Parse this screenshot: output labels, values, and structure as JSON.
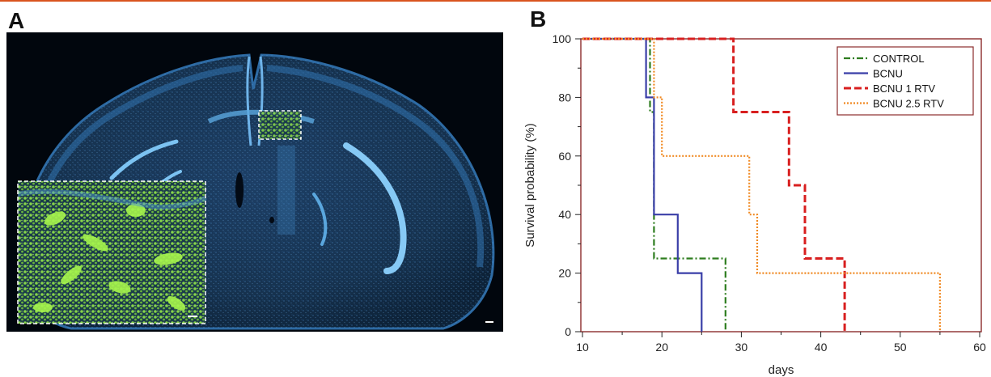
{
  "panels": {
    "a_label": "A",
    "b_label": "B"
  },
  "figure_colors": {
    "rule": "#d9541e",
    "frame": "#8b2c2c",
    "tissue_blue": "#3e8fd0",
    "tumor_green": "#9af04a"
  },
  "chart_data": {
    "type": "line",
    "step": true,
    "xlabel": "days",
    "ylabel": "Survival probability (%)",
    "xlim": [
      10,
      60
    ],
    "ylim": [
      0,
      100
    ],
    "xticks": [
      10,
      20,
      30,
      40,
      50,
      60
    ],
    "yticks": [
      0,
      20,
      40,
      60,
      80,
      100
    ],
    "legend_position": "top-right",
    "series": [
      {
        "name": "CONTROL",
        "color": "#2e7d1f",
        "dash": "dashdot",
        "points": [
          [
            10,
            100
          ],
          [
            18.5,
            100
          ],
          [
            18.5,
            75
          ],
          [
            19,
            75
          ],
          [
            19,
            25
          ],
          [
            28,
            25
          ],
          [
            28,
            0
          ]
        ]
      },
      {
        "name": "BCNU",
        "color": "#3a3fa8",
        "dash": "solid",
        "points": [
          [
            10,
            100
          ],
          [
            18,
            100
          ],
          [
            18,
            80
          ],
          [
            19,
            80
          ],
          [
            19,
            40
          ],
          [
            22,
            40
          ],
          [
            22,
            20
          ],
          [
            25,
            20
          ],
          [
            25,
            0
          ]
        ]
      },
      {
        "name": "BCNU 1 RTV",
        "color": "#d81f1f",
        "dash": "dashed",
        "points": [
          [
            10,
            100
          ],
          [
            29,
            100
          ],
          [
            29,
            75
          ],
          [
            36,
            75
          ],
          [
            36,
            50
          ],
          [
            38,
            50
          ],
          [
            38,
            25
          ],
          [
            43,
            25
          ],
          [
            43,
            0
          ]
        ]
      },
      {
        "name": "BCNU 2.5 RTV",
        "color": "#f08a24",
        "dash": "dotted",
        "points": [
          [
            10,
            100
          ],
          [
            19,
            100
          ],
          [
            19,
            80
          ],
          [
            20,
            80
          ],
          [
            20,
            60
          ],
          [
            31,
            60
          ],
          [
            31,
            40
          ],
          [
            32,
            40
          ],
          [
            32,
            20
          ],
          [
            55,
            20
          ],
          [
            55,
            0
          ]
        ]
      }
    ]
  }
}
